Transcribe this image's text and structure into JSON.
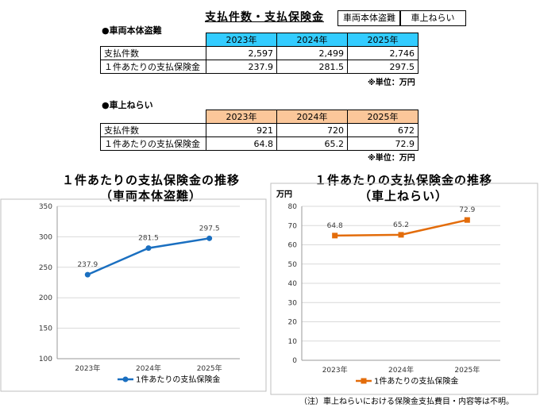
{
  "header": {
    "title": "支払件数・支払保険金",
    "tag1": "車両本体盗難",
    "tag2": "車上ねらい"
  },
  "section1": {
    "label": "●車両本体盗難",
    "years": [
      "2023年",
      "2024年",
      "2025年"
    ],
    "rows": [
      {
        "label": "支払件数",
        "values": [
          "2,597",
          "2,499",
          "2,746"
        ]
      },
      {
        "label": "１件あたりの支払保険金",
        "values": [
          "237.9",
          "281.5",
          "297.5"
        ]
      }
    ],
    "unit": "※単位：万円"
  },
  "section2": {
    "label": "●車上ねらい",
    "years": [
      "2023年",
      "2024年",
      "2025年"
    ],
    "rows": [
      {
        "label": "支払件数",
        "values": [
          "921",
          "720",
          "672"
        ]
      },
      {
        "label": "１件あたりの支払保険金",
        "values": [
          "64.8",
          "65.2",
          "72.9"
        ]
      }
    ],
    "unit": "※単位：万円"
  },
  "chart_data": [
    {
      "type": "line",
      "title": "１件あたりの支払保険金の推移",
      "subtitle": "（車両本体盗難）",
      "categories": [
        "2023年",
        "2024年",
        "2025年"
      ],
      "series": [
        {
          "name": "1件あたりの支払保険金",
          "values": [
            237.9,
            281.5,
            297.5
          ]
        }
      ],
      "data_labels": [
        "237.9",
        "281.5",
        "297.5"
      ],
      "ylim": [
        100,
        350
      ],
      "yticks": [
        100,
        150,
        200,
        250,
        300,
        350
      ],
      "ylabel": "",
      "color": "#1a6fc0",
      "marker": "circle"
    },
    {
      "type": "line",
      "title": "１件あたりの支払保険金の推移",
      "subtitle": "（車上ねらい）",
      "categories": [
        "2023年",
        "2024年",
        "2025年"
      ],
      "series": [
        {
          "name": "1件あたりの支払保険金",
          "values": [
            64.8,
            65.2,
            72.9
          ]
        }
      ],
      "data_labels": [
        "64.8",
        "65.2",
        "72.9"
      ],
      "ylim": [
        0,
        80
      ],
      "yticks": [
        0,
        10,
        20,
        30,
        40,
        50,
        60,
        70,
        80
      ],
      "ylabel": "万円",
      "color": "#e36c0a",
      "marker": "square"
    }
  ],
  "footnote": "（注）車上ねらいにおける保険金支払費目・内容等は不明。"
}
